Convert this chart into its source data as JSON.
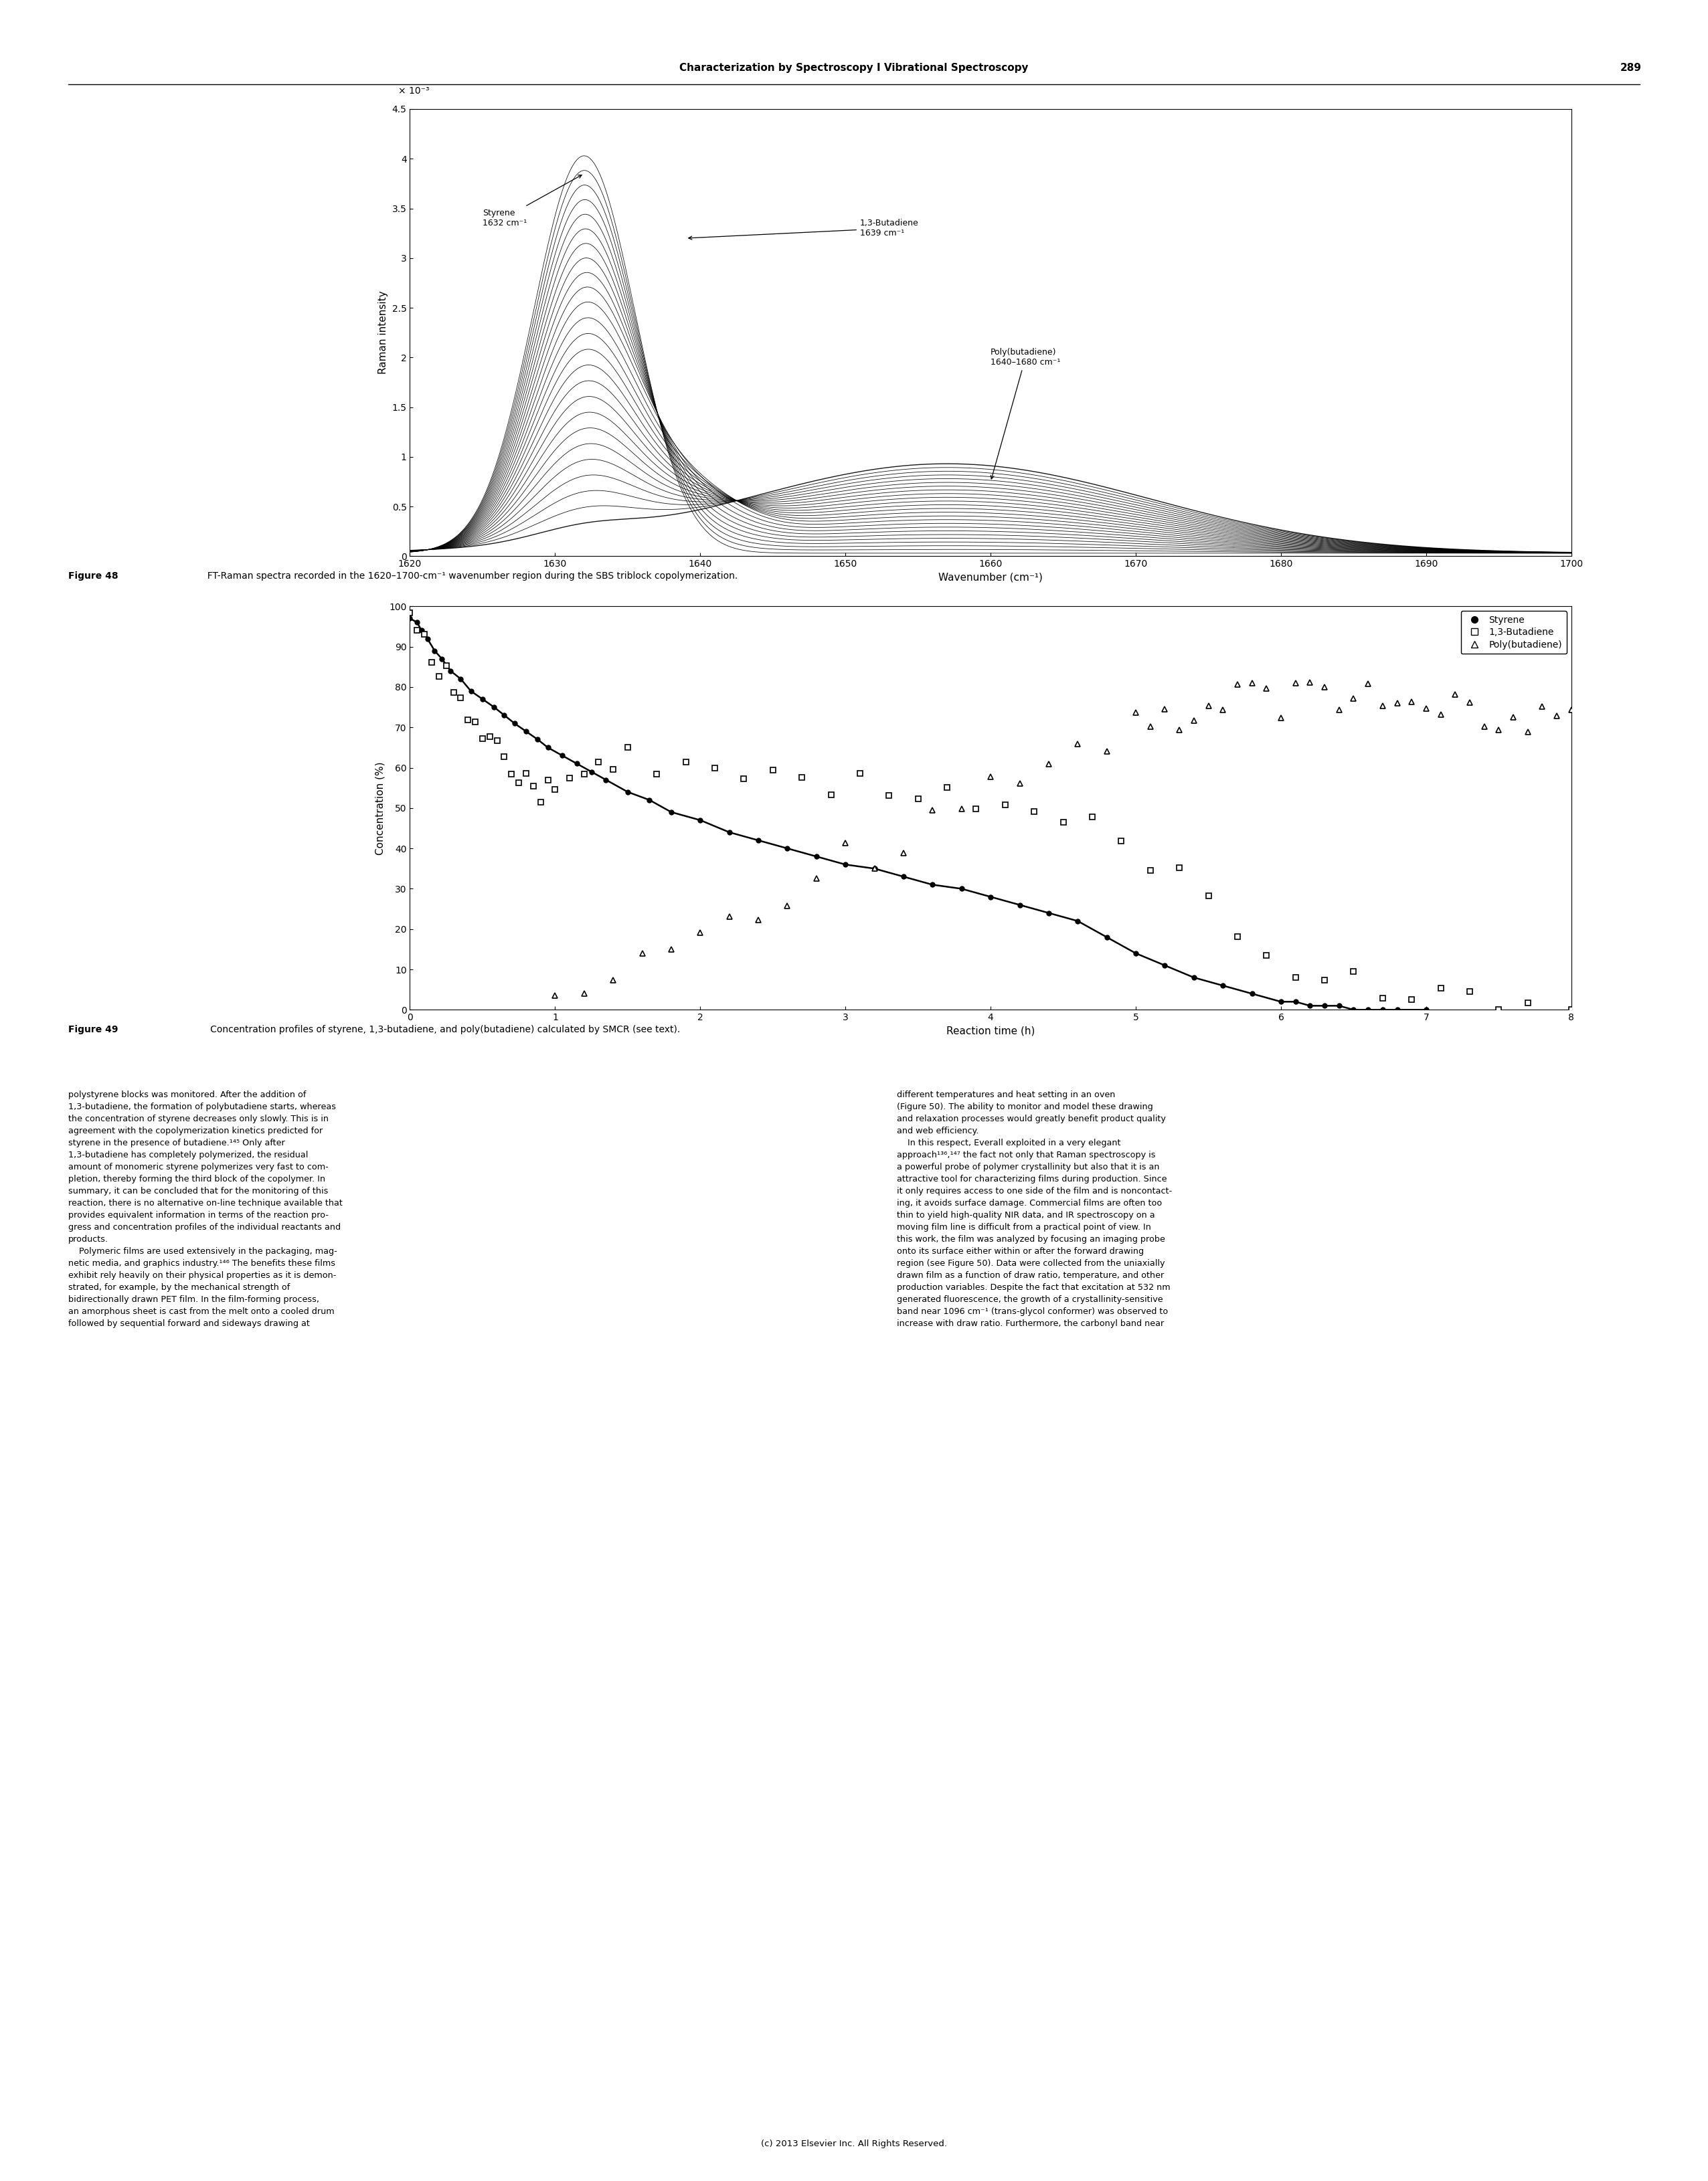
{
  "page_width": 25.52,
  "page_height": 32.6,
  "bg_color": "#ffffff",
  "header_text": "Characterization by Spectroscopy I Vibrational Spectroscopy",
  "header_page": "289",
  "fig48_caption_bold": "Figure 48",
  "fig48_caption_normal": "  FT-Raman spectra recorded in the 1620–1700-cm⁻¹ wavenumber region during the SBS triblock copolymerization.",
  "fig49_caption_bold": "Figure 49",
  "fig49_caption_normal": "   Concentration profiles of styrene, 1,3-butadiene, and poly(butadiene) calculated by SMCR (see text).",
  "fig48": {
    "xlabel": "Wavenumber (cm⁻¹)",
    "ylabel": "Raman intensity",
    "xmin": 1620,
    "xmax": 1700,
    "ymin": 0,
    "ymax": 4.5,
    "yticks": [
      0,
      0.5,
      1,
      1.5,
      2,
      2.5,
      3,
      3.5,
      4,
      4.5
    ],
    "xticks": [
      1620,
      1630,
      1640,
      1650,
      1660,
      1670,
      1680,
      1690,
      1700
    ],
    "multiplier_text": "× 10⁻³",
    "annotation_styrene": "Styrene\n1632 cm⁻¹",
    "annotation_butadiene": "1,3-Butadiene\n1639 cm⁻¹",
    "annotation_poly": "Poly(butadiene)\n1640–1680 cm⁻¹",
    "num_spectra": 25
  },
  "fig49": {
    "xlabel": "Reaction time (h)",
    "ylabel": "Concentration (%)",
    "xmin": 0,
    "xmax": 8,
    "ymin": 0,
    "ymax": 100,
    "xticks": [
      0,
      1,
      2,
      3,
      4,
      5,
      6,
      7,
      8
    ],
    "yticks": [
      0,
      10,
      20,
      30,
      40,
      50,
      60,
      70,
      80,
      90,
      100
    ],
    "legend_styrene": "Styrene",
    "legend_butadiene": "1,3-Butadiene",
    "legend_poly": "Poly(butadiene)"
  },
  "body_text_left": "polystyrene blocks was monitored. After the addition of\n1,3-butadiene, the formation of polybutadiene starts, whereas\nthe concentration of styrene decreases only slowly. This is in\nagreement with the copolymerization kinetics predicted for\nstyrene in the presence of butadiene.¹⁴⁵ Only after\n1,3-butadiene has completely polymerized, the residual\namount of monomeric styrene polymerizes very fast to com-\npletion, thereby forming the third block of the copolymer. In\nsummary, it can be concluded that for the monitoring of this\nreaction, there is no alternative on-line technique available that\nprovides equivalent information in terms of the reaction pro-\ngress and concentration profiles of the individual reactants and\nproducts.\n    Polymeric films are used extensively in the packaging, mag-\nnetic media, and graphics industry.¹⁴⁶ The benefits these films\nexhibit rely heavily on their physical properties as it is demon-\nstrated, for example, by the mechanical strength of\nbidirectionally drawn PET film. In the film-forming process,\nan amorphous sheet is cast from the melt onto a cooled drum\nfollowed by sequential forward and sideways drawing at",
  "body_text_right": "different temperatures and heat setting in an oven\n(Figure 50). The ability to monitor and model these drawing\nand relaxation processes would greatly benefit product quality\nand web efficiency.\n    In this respect, Everall exploited in a very elegant\napproach¹³⁶,¹⁴⁷ the fact not only that Raman spectroscopy is\na powerful probe of polymer crystallinity but also that it is an\nattractive tool for characterizing films during production. Since\nit only requires access to one side of the film and is noncontact-\ning, it avoids surface damage. Commercial films are often too\nthin to yield high-quality NIR data, and IR spectroscopy on a\nmoving film line is difficult from a practical point of view. In\nthis work, the film was analyzed by focusing an imaging probe\nonto its surface either within or after the forward drawing\nregion (see Figure 50). Data were collected from the uniaxially\ndrawn film as a function of draw ratio, temperature, and other\nproduction variables. Despite the fact that excitation at 532 nm\ngenerated fluorescence, the growth of a crystallinity-sensitive\nband near 1096 cm⁻¹ (trans-glycol conformer) was observed to\nincrease with draw ratio. Furthermore, the carbonyl band near",
  "footer_text": "(c) 2013 Elsevier Inc. All Rights Reserved."
}
